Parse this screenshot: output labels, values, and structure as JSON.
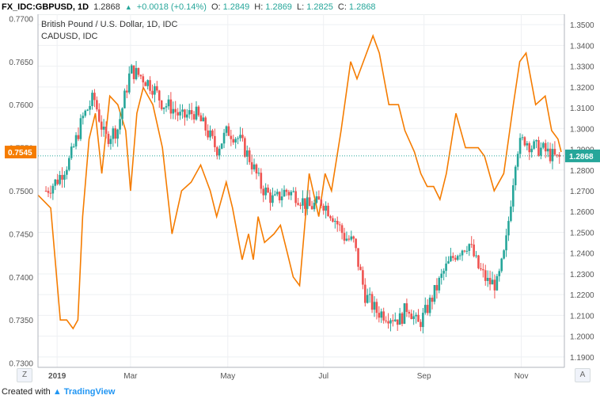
{
  "ticker": {
    "symbol": "FX_IDC:GBPUSD, 1D",
    "last": "1.2868",
    "change": "+0.0018 (+0.14%)",
    "o_label": "O:",
    "o_value": "1.2849",
    "h_label": "H:",
    "h_value": "1.2869",
    "l_label": "L:",
    "l_value": "1.2825",
    "c_label": "C:",
    "c_value": "1.2868"
  },
  "legend": {
    "main": "British Pound / U.S. Dollar, 1D, IDC",
    "overlay": "CADUSD, IDC"
  },
  "colors": {
    "up": "#26a69a",
    "down": "#ef5350",
    "overlay": "#f57c00",
    "grid": "#eef0f3",
    "axis_text": "#555555"
  },
  "corner_left": "Z",
  "corner_right": "A",
  "footer": {
    "created_with": "Created with",
    "brand": "TradingView"
  },
  "chart_data": {
    "type": "candlestick",
    "title": "British Pound / U.S. Dollar, 1D, IDC",
    "x_tick_labels": [
      "2019",
      "Mar",
      "May",
      "Jul",
      "Sep",
      "Nov"
    ],
    "x_tick_day_index": [
      12,
      58,
      119,
      179,
      242,
      303
    ],
    "total_days": 330,
    "y_right": {
      "label": "GBPUSD",
      "ylim": [
        1.185,
        1.355
      ],
      "ticks": [
        1.19,
        1.2,
        1.21,
        1.22,
        1.23,
        1.24,
        1.25,
        1.26,
        1.27,
        1.28,
        1.29,
        1.3,
        1.31,
        1.32,
        1.33,
        1.34,
        1.35
      ],
      "last_value": "1.2868"
    },
    "y_left": {
      "label": "CADUSD",
      "ylim": [
        0.7295,
        0.7705
      ],
      "ticks": [
        0.73,
        0.735,
        0.74,
        0.745,
        0.75,
        0.755,
        0.76,
        0.765,
        0.77
      ],
      "last_value": "0.7545"
    },
    "series": [
      {
        "name": "GBPUSD",
        "x": [
          5,
          12,
          20,
          28,
          35,
          42,
          50,
          58,
          65,
          72,
          78,
          84,
          90,
          98,
          105,
          112,
          119,
          126,
          133,
          140,
          148,
          155,
          162,
          170,
          178,
          185,
          192,
          198,
          205,
          212,
          220,
          227,
          232,
          238,
          242,
          248,
          255,
          262,
          270,
          276,
          282,
          288,
          293,
          300,
          305,
          310,
          316,
          322,
          326,
          328
        ],
        "values": [
          1.27,
          1.275,
          1.285,
          1.305,
          1.315,
          1.295,
          1.3,
          1.328,
          1.325,
          1.32,
          1.312,
          1.31,
          1.305,
          1.308,
          1.3,
          1.29,
          1.299,
          1.295,
          1.285,
          1.272,
          1.265,
          1.27,
          1.268,
          1.262,
          1.265,
          1.258,
          1.248,
          1.245,
          1.22,
          1.212,
          1.21,
          1.208,
          1.215,
          1.205,
          1.21,
          1.22,
          1.232,
          1.24,
          1.245,
          1.233,
          1.226,
          1.225,
          1.242,
          1.29,
          1.295,
          1.291,
          1.29,
          1.287,
          1.285,
          1.2868
        ]
      },
      {
        "name": "CADUSD",
        "x": [
          0,
          8,
          14,
          18,
          22,
          25,
          28,
          32,
          36,
          40,
          45,
          50,
          55,
          58,
          62,
          66,
          72,
          78,
          84,
          90,
          96,
          102,
          108,
          112,
          118,
          122,
          128,
          132,
          135,
          138,
          142,
          148,
          152,
          156,
          160,
          164,
          170,
          176,
          180,
          184,
          190,
          196,
          200,
          206,
          210,
          214,
          220,
          226,
          230,
          236,
          240,
          244,
          248,
          252,
          256,
          262,
          268,
          276,
          280,
          286,
          292,
          298,
          302,
          306,
          312,
          318,
          322,
          326,
          328
        ],
        "values": [
          0.7495,
          0.748,
          0.735,
          0.735,
          0.734,
          0.735,
          0.747,
          0.756,
          0.759,
          0.752,
          0.761,
          0.76,
          0.757,
          0.75,
          0.759,
          0.762,
          0.76,
          0.755,
          0.745,
          0.75,
          0.751,
          0.753,
          0.75,
          0.747,
          0.751,
          0.748,
          0.742,
          0.745,
          0.742,
          0.747,
          0.744,
          0.745,
          0.746,
          0.743,
          0.74,
          0.739,
          0.752,
          0.747,
          0.752,
          0.75,
          0.757,
          0.765,
          0.763,
          0.766,
          0.768,
          0.766,
          0.76,
          0.76,
          0.757,
          0.7545,
          0.752,
          0.7505,
          0.7505,
          0.749,
          0.752,
          0.759,
          0.755,
          0.755,
          0.754,
          0.75,
          0.752,
          0.76,
          0.765,
          0.766,
          0.76,
          0.761,
          0.757,
          0.756,
          0.7545
        ]
      }
    ],
    "grid": true,
    "legend_position": "top-left"
  }
}
